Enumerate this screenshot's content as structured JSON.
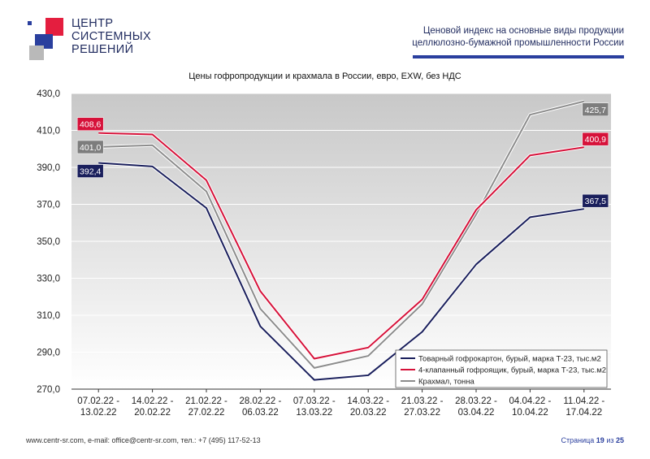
{
  "logo": {
    "line1": "ЦЕНТР",
    "line2": "СИСТЕМНЫХ",
    "line3": "РЕШЕНИЙ",
    "colors": {
      "red": "#e41e3f",
      "blue": "#2a3f9e",
      "gray": "#b9b9b9"
    }
  },
  "header": {
    "line1": "Ценовой индекс на основные виды продукции",
    "line2": "целлюлозно-бумажной промышленности России"
  },
  "footer": {
    "contacts": "www.centr-sr.com, e-mail: office@centr-sr.com, тел.: +7 (495) 117-52-13",
    "page_word": "Страница",
    "page_current": "19",
    "page_of": "из",
    "page_total": "25"
  },
  "chart_data": {
    "type": "line",
    "title": "Цены гофропродукции и крахмала в России, евро, EXW, без НДС",
    "xlabel": "",
    "ylabel": "",
    "ylim": [
      270,
      430
    ],
    "yticks": [
      270,
      290,
      310,
      330,
      350,
      370,
      390,
      410,
      430
    ],
    "ytick_labels": [
      "270,0",
      "290,0",
      "310,0",
      "330,0",
      "350,0",
      "370,0",
      "390,0",
      "410,0",
      "430,0"
    ],
    "categories": [
      [
        "07.02.22 -",
        "13.02.22"
      ],
      [
        "14.02.22 -",
        "20.02.22"
      ],
      [
        "21.02.22 -",
        "27.02.22"
      ],
      [
        "28.02.22 -",
        "06.03.22"
      ],
      [
        "07.03.22 -",
        "13.03.22"
      ],
      [
        "14.03.22 -",
        "20.03.22"
      ],
      [
        "21.03.22 -",
        "27.03.22"
      ],
      [
        "28.03.22 -",
        "03.04.22"
      ],
      [
        "04.04.22 -",
        "10.04.22"
      ],
      [
        "11.04.22 -",
        "17.04.22"
      ]
    ],
    "grid": true,
    "legend_position": "bottom-right",
    "series": [
      {
        "name": "Товарный гофрокартон, бурый, марка Т-23, тыс.м2",
        "color": "#1a1f5c",
        "values": [
          392.4,
          390.5,
          368.0,
          304.0,
          275.0,
          277.5,
          301.0,
          337.5,
          363.0,
          367.5
        ],
        "start_label": "392,4",
        "end_label": "367,5"
      },
      {
        "name": "4-клапанный гофроящик, бурый, марка Т-23, тыс.м2",
        "color": "#d6123a",
        "values": [
          408.6,
          407.8,
          383.0,
          323.0,
          286.5,
          292.5,
          318.5,
          367.0,
          396.5,
          400.9
        ],
        "start_label": "408,6",
        "end_label": "400,9"
      },
      {
        "name": "Крахмал, тонна",
        "color": "#8c8c8c",
        "values": [
          401.0,
          402.0,
          377.0,
          313.5,
          281.5,
          288.0,
          316.0,
          364.5,
          418.5,
          425.7
        ],
        "start_label": "401,0",
        "end_label": "425,7"
      }
    ],
    "label_colors": [
      "#1a1f5c",
      "#d6123a",
      "#7d7d7d"
    ]
  }
}
